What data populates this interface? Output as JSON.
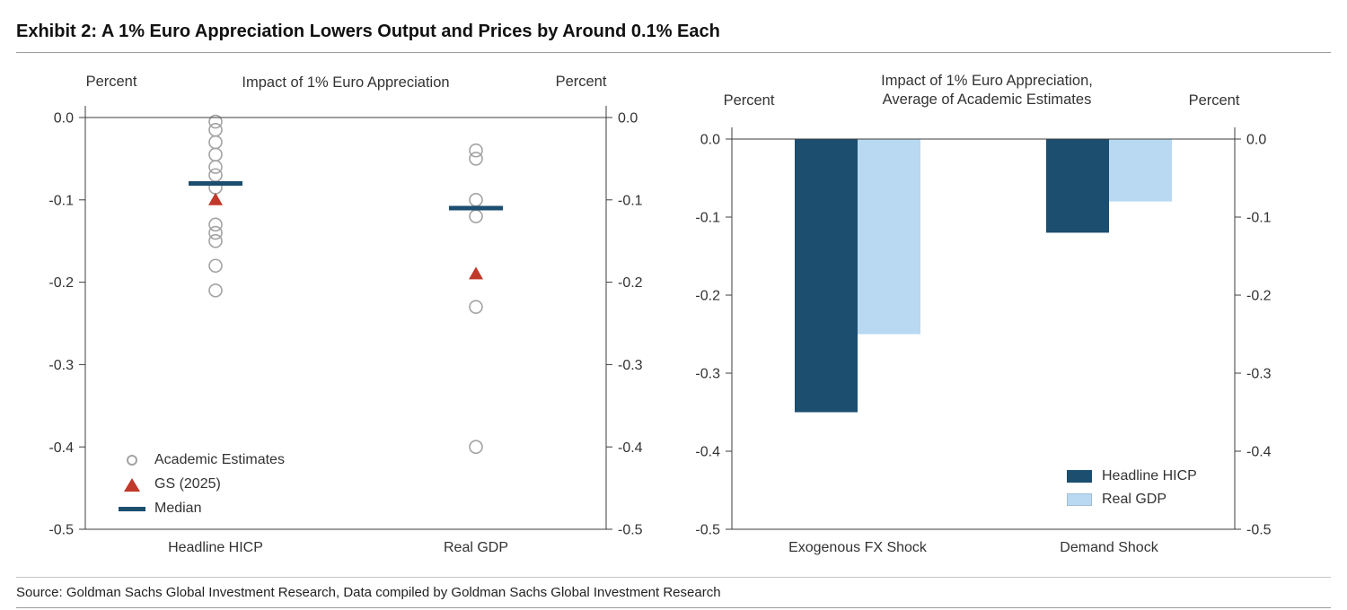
{
  "exhibit": {
    "title": "Exhibit 2: A 1% Euro Appreciation Lowers Output and Prices by Around 0.1% Each",
    "source": "Source: Goldman Sachs Global Investment Research, Data compiled by Goldman Sachs Global Investment Research"
  },
  "colors": {
    "navy": "#1c4e70",
    "light_blue": "#b8d9f1",
    "red": "#c0392b",
    "marker_gray": "#a3a3a3",
    "axis": "#3c3c3c",
    "text": "#333333"
  },
  "chart_data": [
    {
      "type": "scatter",
      "title": "Impact of 1% Euro Appreciation",
      "ylabel_left": "Percent",
      "ylabel_right": "Percent",
      "ylim": [
        -0.5,
        0.0
      ],
      "yticks": [
        0.0,
        -0.1,
        -0.2,
        -0.3,
        -0.4,
        -0.5
      ],
      "grid": false,
      "legend_position": "lower-left",
      "categories": [
        "Headline HICP",
        "Real GDP"
      ],
      "series": [
        {
          "name": "Academic Estimates",
          "marker": "circle",
          "values_by_category": [
            [
              -0.005,
              -0.015,
              -0.03,
              -0.045,
              -0.06,
              -0.07,
              -0.085,
              -0.13,
              -0.14,
              -0.15,
              -0.18,
              -0.21
            ],
            [
              -0.04,
              -0.05,
              -0.1,
              -0.12,
              -0.23,
              -0.4
            ]
          ]
        },
        {
          "name": "GS (2025)",
          "marker": "triangle",
          "values": [
            -0.1,
            -0.19
          ]
        },
        {
          "name": "Median",
          "marker": "hline",
          "values": [
            -0.08,
            -0.11
          ]
        }
      ]
    },
    {
      "type": "bar",
      "title": "Impact of 1% Euro Appreciation, Average of Academic Estimates",
      "title_lines": [
        "Impact of 1% Euro Appreciation,",
        "Average of Academic Estimates"
      ],
      "ylabel_left": "Percent",
      "ylabel_right": "Percent",
      "ylim": [
        -0.5,
        0.0
      ],
      "yticks": [
        0.0,
        -0.1,
        -0.2,
        -0.3,
        -0.4,
        -0.5
      ],
      "grid": false,
      "legend_position": "lower-right",
      "categories": [
        "Exogenous FX Shock",
        "Demand Shock"
      ],
      "series": [
        {
          "name": "Headline HICP",
          "values": [
            -0.35,
            -0.12
          ]
        },
        {
          "name": "Real GDP",
          "values": [
            -0.25,
            -0.08
          ]
        }
      ]
    }
  ]
}
